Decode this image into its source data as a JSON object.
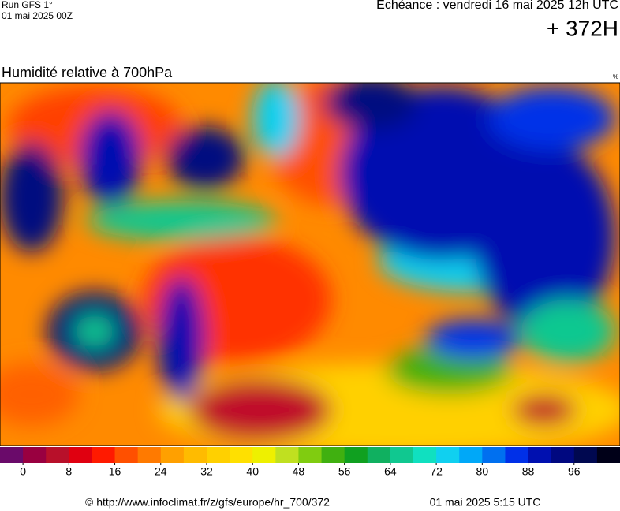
{
  "header": {
    "run": "Run GFS 1°",
    "run_date": "01 mai 2025 00Z",
    "valid": "Echéance : vendredi 16 mai 2025 12h UTC",
    "lead": "+ 372H"
  },
  "map": {
    "title": "Humidité relative à 700hPa",
    "unit": "%"
  },
  "colorbar": {
    "colors": [
      "#6a0a6a",
      "#990040",
      "#b8102a",
      "#e00010",
      "#ff1a00",
      "#ff5000",
      "#ff7a00",
      "#ffa000",
      "#ffbb00",
      "#ffd000",
      "#ffe000",
      "#eef000",
      "#c0e020",
      "#80cc10",
      "#40b010",
      "#10a020",
      "#10b060",
      "#10c890",
      "#10e0c0",
      "#10d0f0",
      "#00a8f8",
      "#0070f0",
      "#0030e8",
      "#0010b0",
      "#000880",
      "#000850",
      "#000018"
    ],
    "ticks": [
      0,
      8,
      16,
      24,
      32,
      40,
      48,
      56,
      64,
      72,
      80,
      88,
      96
    ]
  },
  "footer": {
    "source": "© http://www.infoclimat.fr/z/gfs/europe/hr_700/372",
    "generated": "01 mai 2025  5:15 UTC"
  }
}
